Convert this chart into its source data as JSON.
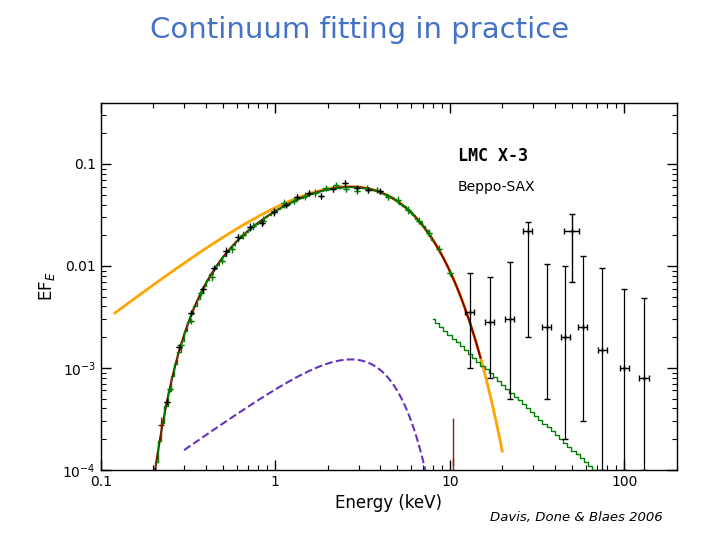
{
  "title": "Continuum fitting in practice",
  "title_color": "#4472C4",
  "xlabel": "Energy (keV)",
  "ylabel": "EF$_E$",
  "annotation_title": "LMC X-3",
  "annotation_sub": "Beppo-SAX",
  "credit": "Davis, Done & Blaes 2006",
  "xlim": [
    0.1,
    200
  ],
  "ylim": [
    0.0001,
    0.4
  ],
  "background_color": "#ffffff",
  "plot_bg_color": "#ffffff",
  "title_fontsize": 22,
  "axis_fontsize": 12,
  "fig_width": 7.2,
  "fig_height": 5.4
}
